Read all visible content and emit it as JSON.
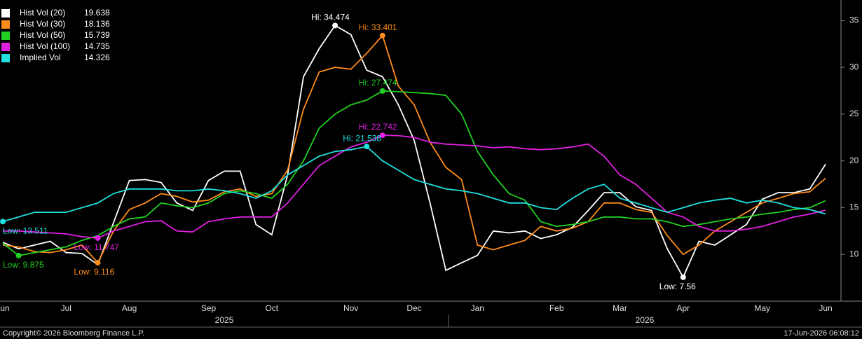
{
  "chart_data": {
    "type": "line",
    "categories": [
      "Jun",
      null,
      null,
      null,
      "Jul",
      null,
      null,
      null,
      "Aug",
      null,
      null,
      null,
      null,
      "Sep",
      null,
      null,
      null,
      "Oct",
      null,
      null,
      null,
      null,
      "Nov",
      null,
      null,
      null,
      "Dec",
      null,
      null,
      null,
      "Jan",
      null,
      null,
      null,
      null,
      "Feb",
      null,
      null,
      null,
      "Mar",
      null,
      null,
      null,
      "Apr",
      null,
      null,
      null,
      null,
      "May",
      null,
      null,
      null,
      "Jun"
    ],
    "year_labels": [
      "2025",
      "2026"
    ],
    "ylim": [
      5,
      37.2
    ],
    "yticks": [
      10,
      15,
      20,
      25,
      30,
      35
    ],
    "grid": false,
    "legend": "top-left",
    "series": [
      {
        "name": "Hist Vol (20)",
        "color": "#ffffff",
        "high_label": "Hi: 34.474",
        "low_label": "Low: 7.56",
        "values": [
          11.3,
          10.6,
          11.0,
          11.4,
          10.2,
          10.1,
          8.9,
          13.4,
          17.9,
          18.0,
          17.7,
          15.5,
          14.7,
          17.9,
          18.9,
          18.9,
          13.2,
          12.1,
          18.5,
          29.0,
          32.0,
          34.474,
          33.5,
          29.7,
          29.0,
          26.0,
          22.2,
          15.5,
          8.3,
          9.1,
          9.9,
          12.5,
          12.3,
          12.5,
          11.7,
          12.1,
          12.9,
          14.7,
          16.6,
          16.6,
          15.1,
          14.7,
          10.6,
          7.56,
          11.4,
          11.0,
          12.1,
          13.2,
          15.9,
          16.6,
          16.6,
          17.0,
          19.638
        ]
      },
      {
        "name": "Hist Vol (30)",
        "color": "#ff8c1a",
        "high_label": "Hi: 33.401",
        "low_label": "Low: 9.116",
        "values": [
          11.0,
          10.8,
          10.3,
          10.2,
          10.5,
          11.0,
          9.116,
          12.5,
          14.8,
          15.5,
          16.5,
          16.2,
          15.6,
          15.8,
          16.7,
          17.0,
          16.2,
          16.5,
          19.0,
          25.5,
          29.5,
          30.0,
          29.8,
          31.5,
          33.401,
          28.0,
          26.0,
          22.0,
          19.3,
          18.0,
          11.0,
          10.5,
          11.0,
          11.5,
          13.0,
          12.5,
          12.8,
          13.5,
          15.5,
          15.5,
          14.8,
          14.5,
          12.0,
          10.0,
          11.0,
          12.5,
          13.5,
          14.5,
          15.5,
          16.0,
          16.5,
          16.7,
          18.136
        ]
      },
      {
        "name": "Hist Vol (50)",
        "color": "#22d022",
        "high_label": "Hi: 27.474",
        "low_label": "Low: 9.875",
        "values": [
          11.2,
          9.875,
          10.2,
          10.5,
          10.8,
          11.5,
          12.0,
          13.0,
          13.8,
          14.0,
          15.5,
          15.2,
          15.0,
          15.5,
          16.5,
          16.8,
          16.5,
          16.0,
          17.5,
          20.0,
          23.5,
          25.0,
          26.0,
          26.5,
          27.474,
          27.4,
          27.3,
          27.2,
          27.0,
          25.0,
          21.0,
          18.5,
          16.5,
          15.8,
          13.5,
          13.0,
          13.2,
          13.5,
          14.0,
          14.0,
          13.8,
          13.8,
          13.5,
          13.0,
          13.2,
          13.5,
          13.8,
          14.0,
          14.3,
          14.5,
          14.8,
          15.0,
          15.739
        ]
      },
      {
        "name": "Hist Vol (100)",
        "color": "#e020e0",
        "high_label": "Hi: 22.742",
        "low_label": "Low: 11.747",
        "values": [
          12.5,
          12.5,
          12.4,
          12.3,
          12.2,
          11.9,
          11.747,
          12.5,
          13.0,
          13.5,
          13.6,
          12.5,
          12.4,
          13.5,
          13.8,
          14.0,
          14.0,
          14.0,
          15.5,
          17.5,
          19.5,
          20.5,
          21.5,
          22.0,
          22.742,
          22.7,
          22.5,
          22.0,
          21.8,
          21.7,
          21.6,
          21.4,
          21.5,
          21.3,
          21.2,
          21.3,
          21.5,
          21.8,
          20.5,
          18.5,
          17.5,
          16.0,
          14.5,
          14.0,
          13.0,
          12.5,
          12.5,
          12.7,
          13.0,
          13.5,
          14.0,
          14.3,
          14.735
        ]
      },
      {
        "name": "Implied Vol",
        "color": "#20e0e0",
        "high_label": "Hi: 21.538",
        "low_label": "Low: 13.511",
        "values": [
          13.511,
          14.0,
          14.5,
          14.5,
          14.5,
          15.0,
          15.5,
          16.5,
          17.0,
          17.0,
          17.0,
          16.8,
          16.8,
          17.0,
          16.8,
          16.5,
          16.0,
          16.8,
          18.5,
          19.5,
          20.5,
          21.0,
          21.2,
          21.538,
          20.0,
          19.0,
          18.0,
          17.5,
          17.0,
          16.8,
          16.5,
          16.0,
          15.5,
          15.5,
          15.0,
          14.8,
          16.0,
          17.0,
          17.5,
          16.0,
          15.5,
          15.0,
          14.5,
          15.0,
          15.5,
          15.8,
          16.0,
          15.5,
          15.8,
          15.5,
          15.0,
          14.8,
          14.326
        ]
      }
    ]
  },
  "footer": {
    "copyright": "Copyright© 2026 Bloomberg Finance L.P.",
    "timestamp": "17-Jun-2026 06:08:12"
  }
}
